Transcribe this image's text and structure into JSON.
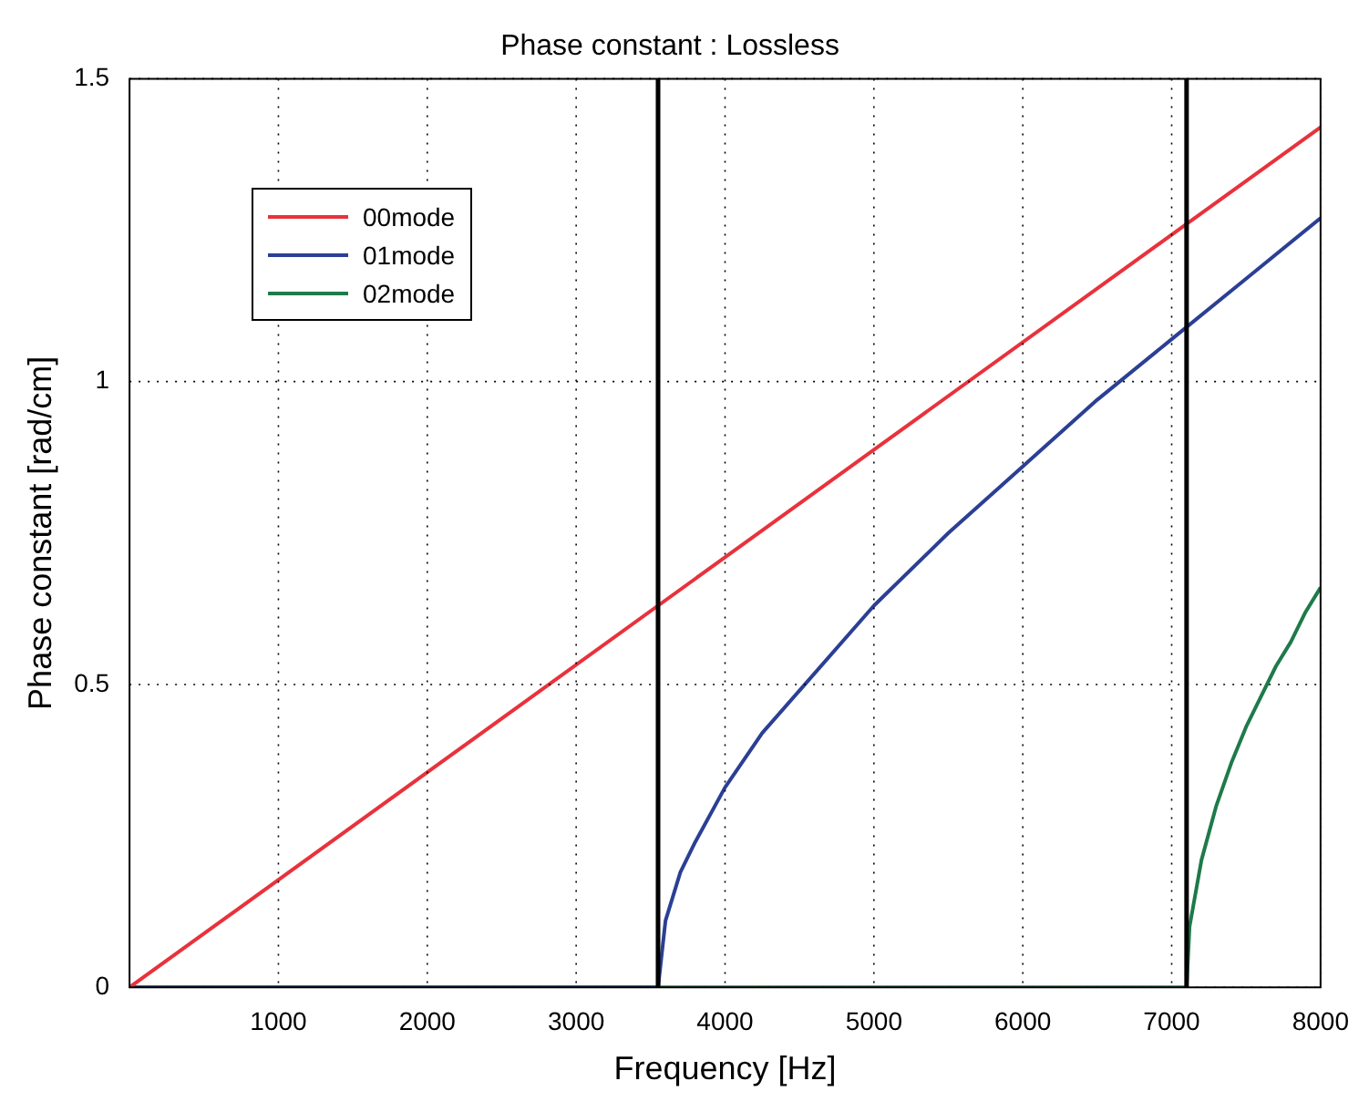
{
  "chart_data": {
    "type": "line",
    "title": "Phase constant : Lossless",
    "xlabel": "Frequency [Hz]",
    "ylabel": "Phase constant [rad/cm]",
    "xlim": [
      0,
      8000
    ],
    "xticks": [
      1000,
      2000,
      3000,
      4000,
      5000,
      6000,
      7000,
      8000
    ],
    "ylim": [
      0,
      1.5
    ],
    "yticks": [
      0,
      0.5,
      1,
      1.5
    ],
    "grid": true,
    "legend": "top left",
    "line_style": "solid",
    "marker": "none",
    "series": [
      {
        "name": "00mode",
        "color": "#e8323c",
        "x": [
          0,
          4000,
          8000
        ],
        "values": [
          0,
          0.71,
          1.42
        ]
      },
      {
        "name": "01mode",
        "color": "#2b3f94",
        "x": [
          0,
          3550,
          3600,
          3700,
          3800,
          4000,
          4250,
          4500,
          5000,
          5500,
          6000,
          6500,
          7000,
          7500,
          8000
        ],
        "values": [
          0,
          0,
          0.11,
          0.19,
          0.24,
          0.33,
          0.42,
          0.49,
          0.63,
          0.75,
          0.86,
          0.97,
          1.07,
          1.17,
          1.27
        ]
      },
      {
        "name": "02mode",
        "color": "#1e7a4a",
        "x": [
          0,
          7100,
          7120,
          7200,
          7300,
          7400,
          7500,
          7600,
          7700,
          7800,
          7900,
          8000
        ],
        "values": [
          0,
          0,
          0.1,
          0.21,
          0.3,
          0.37,
          0.43,
          0.48,
          0.53,
          0.57,
          0.62,
          0.66
        ]
      }
    ],
    "ref_lines": [
      {
        "axis": "x",
        "value": 3550,
        "color": "#000000"
      },
      {
        "axis": "x",
        "value": 7100,
        "color": "#000000"
      }
    ]
  }
}
